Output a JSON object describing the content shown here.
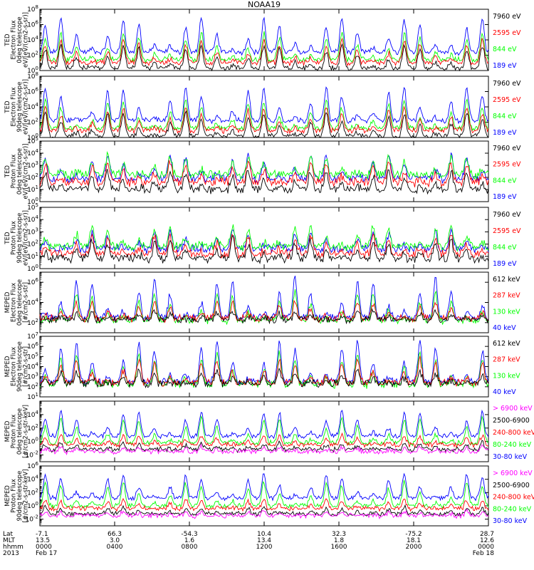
{
  "title": "NOAA19",
  "colors": {
    "black": "#000000",
    "red": "#ff0000",
    "green": "#00ff00",
    "blue": "#0000ff",
    "magenta": "#ff00ff"
  },
  "chart_data": [
    {
      "type": "line",
      "scale": "log",
      "ytick_exps": [
        0,
        2,
        4,
        6,
        8
      ],
      "ylim_exp": [
        0,
        8
      ],
      "ylabel": [
        "TED",
        "Electron Flux",
        "0deg telescope",
        "eV/[eV/(cm2-s-sr)]"
      ],
      "series": [
        {
          "name": "7960 eV",
          "color": "black",
          "base": 0.3,
          "peak": 3.4
        },
        {
          "name": "2595 eV",
          "color": "red",
          "base": 1.0,
          "peak": 4.0
        },
        {
          "name": "844 eV",
          "color": "green",
          "base": 1.4,
          "peak": 5.0
        },
        {
          "name": "189 eV",
          "color": "blue",
          "base": 2.4,
          "peak": 6.9
        }
      ]
    },
    {
      "type": "line",
      "scale": "log",
      "ytick_exps": [
        0,
        2,
        4,
        6,
        8
      ],
      "ylim_exp": [
        0,
        8
      ],
      "ylabel": [
        "TED",
        "Electron Flux",
        "90deg telescope",
        "eV/[eV/(cm2-s-sr)]"
      ],
      "series": [
        {
          "name": "7960 eV",
          "color": "black",
          "base": 0.2,
          "peak": 3.3
        },
        {
          "name": "2595 eV",
          "color": "red",
          "base": 0.9,
          "peak": 4.0
        },
        {
          "name": "844 eV",
          "color": "green",
          "base": 1.2,
          "peak": 5.0
        },
        {
          "name": "189 eV",
          "color": "blue",
          "base": 2.2,
          "peak": 6.6
        }
      ]
    },
    {
      "type": "line",
      "scale": "log",
      "ytick_exps": [
        0,
        1,
        2,
        3,
        4,
        5
      ],
      "ylim_exp": [
        0,
        5
      ],
      "ylabel": [
        "TED",
        "Proton Flux",
        "0deg telescope",
        "eV/[eV/(cm2-s-sr)]"
      ],
      "series": [
        {
          "name": "7960 eV",
          "color": "black",
          "base": 1.0,
          "peak": 2.6
        },
        {
          "name": "2595 eV",
          "color": "red",
          "base": 1.6,
          "peak": 3.4
        },
        {
          "name": "844 eV",
          "color": "green",
          "base": 2.2,
          "peak": 3.8
        },
        {
          "name": "189 eV",
          "color": "blue",
          "base": 1.9,
          "peak": 4.0
        }
      ]
    },
    {
      "type": "line",
      "scale": "log",
      "ytick_exps": [
        0,
        1,
        2,
        3,
        4,
        5
      ],
      "ylim_exp": [
        0,
        5
      ],
      "ylabel": [
        "TED",
        "Proton Flux",
        "90deg telescope",
        "eV/[eV/(cm2-s-sr)]"
      ],
      "series": [
        {
          "name": "7960 eV",
          "color": "black",
          "base": 0.8,
          "peak": 2.4
        },
        {
          "name": "2595 eV",
          "color": "red",
          "base": 1.2,
          "peak": 2.8
        },
        {
          "name": "844 eV",
          "color": "green",
          "base": 1.8,
          "peak": 3.6
        },
        {
          "name": "189 eV",
          "color": "blue",
          "base": 1.6,
          "peak": 3.2
        }
      ]
    },
    {
      "type": "line",
      "scale": "log",
      "ytick_exps": [
        2,
        4,
        6
      ],
      "ylim_exp": [
        1,
        7
      ],
      "ylabel": [
        "MEPED",
        "Electron Flux",
        "0deg telescope",
        "[#/cm2-s-str]"
      ],
      "series": [
        {
          "name": "612 keV",
          "color": "black",
          "base": 2.3,
          "peak": 3.2
        },
        {
          "name": "287 keV",
          "color": "red",
          "base": 2.4,
          "peak": 4.2
        },
        {
          "name": "130 keV",
          "color": "green",
          "base": 2.2,
          "peak": 5.0
        },
        {
          "name": "40 keV",
          "color": "blue",
          "base": 2.5,
          "peak": 6.4
        }
      ]
    },
    {
      "type": "line",
      "scale": "log",
      "ytick_exps": [
        1,
        2,
        3,
        4,
        5,
        6,
        7
      ],
      "ylim_exp": [
        1,
        7
      ],
      "ylabel": [
        "MEPED",
        "Electron Flux",
        "90deg telescope",
        "[#/cm2-s-str]"
      ],
      "series": [
        {
          "name": "612 keV",
          "color": "black",
          "base": 2.3,
          "peak": 3.6
        },
        {
          "name": "287 keV",
          "color": "red",
          "base": 2.4,
          "peak": 4.8
        },
        {
          "name": "130 keV",
          "color": "green",
          "base": 2.2,
          "peak": 5.4
        },
        {
          "name": "40 keV",
          "color": "blue",
          "base": 2.5,
          "peak": 6.6
        }
      ]
    },
    {
      "type": "line",
      "scale": "log",
      "ytick_exps": [
        -2,
        0,
        2,
        4
      ],
      "ylim_exp": [
        -3,
        6
      ],
      "ylabel": [
        "MEPED",
        "Proton Flux",
        "0deg telescope",
        "[#/cm2-s-str-keV]"
      ],
      "series": [
        {
          "name": "> 6900 keV",
          "color": "magenta",
          "base": -1.5,
          "peak": -0.8
        },
        {
          "name": "2500-6900",
          "color": "black",
          "base": -1.2,
          "peak": -0.2
        },
        {
          "name": "240-800 keV",
          "color": "red",
          "base": -0.5,
          "peak": 1.0
        },
        {
          "name": "80-240 keV",
          "color": "green",
          "base": -0.2,
          "peak": 3.6
        },
        {
          "name": "30-80 keV",
          "color": "blue",
          "base": 0.8,
          "peak": 4.6
        }
      ]
    },
    {
      "type": "line",
      "scale": "log",
      "ytick_exps": [
        -2,
        0,
        2,
        4,
        6
      ],
      "ylim_exp": [
        -3,
        6
      ],
      "ylabel": [
        "MEPED",
        "Proton Flux",
        "90deg telescope",
        "[#/cm2-s-str-keV]"
      ],
      "series": [
        {
          "name": "> 6900 keV",
          "color": "magenta",
          "base": -1.5,
          "peak": -0.8
        },
        {
          "name": "2500-6900",
          "color": "black",
          "base": -1.2,
          "peak": -0.2
        },
        {
          "name": "240-800 keV",
          "color": "red",
          "base": -0.4,
          "peak": 1.0
        },
        {
          "name": "80-240 keV",
          "color": "green",
          "base": 0.0,
          "peak": 3.6
        },
        {
          "name": "30-80 keV",
          "color": "blue",
          "base": 1.2,
          "peak": 4.8
        }
      ]
    }
  ],
  "x_axis": {
    "row_labels": [
      "Lat",
      "MLT",
      "hhmm",
      "2013"
    ],
    "ticks": [
      {
        "values": [
          "-7.1",
          "13.5",
          "0000",
          "Feb 17"
        ]
      },
      {
        "values": [
          "66.3",
          "3.0",
          "0400",
          ""
        ]
      },
      {
        "values": [
          "-54.3",
          "1.6",
          "0800",
          ""
        ]
      },
      {
        "values": [
          "10.4",
          "13.4",
          "1200",
          ""
        ]
      },
      {
        "values": [
          "32.3",
          "1.8",
          "1600",
          ""
        ]
      },
      {
        "values": [
          "-75.2",
          "18.1",
          "2000",
          ""
        ]
      },
      {
        "values": [
          "28.7",
          "12.6",
          "0000",
          "Feb 18"
        ]
      }
    ]
  }
}
